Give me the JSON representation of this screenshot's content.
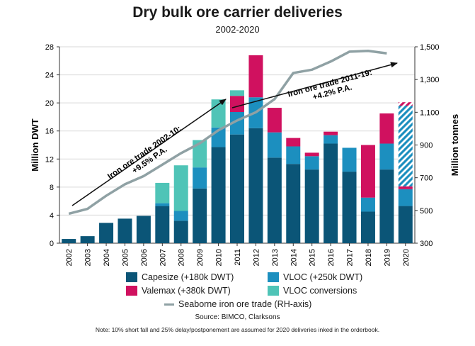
{
  "title": "Dry bulk ore carrier deliveries",
  "subtitle": "2002-2020",
  "source": "Source: BIMCO, Clarksons",
  "note": "Note: 10% short fall and 25% delay/postponement are assumed for 2020 deliveries inked in the orderbook.",
  "colors": {
    "capesize": "#0b5577",
    "vloc": "#1c8fbf",
    "valemax": "#d0115f",
    "vloc_conversions": "#4fc4b7",
    "trade_line": "#8fa1a4",
    "grid": "#d9d9d9"
  },
  "legend": {
    "capesize": "Capesize (+180k DWT)",
    "vloc": "VLOC (+250k DWT)",
    "valemax": "Valemax (+380k DWT)",
    "vloc_conversions": "VLOC conversions",
    "trade": "Seaborne iron ore trade (RH-axis)"
  },
  "annotations": {
    "trade_2002_10": [
      "Iron ore trade 2002-10:",
      "+9.5% P.A."
    ],
    "trade_2011_19": [
      "Iron ore trade 2011-19:",
      "+4.2% P.A."
    ]
  },
  "chart_data": {
    "type": "bar",
    "stacked": true,
    "categories": [
      "2002",
      "2003",
      "2004",
      "2005",
      "2006",
      "2007",
      "2008",
      "2009",
      "2010",
      "2011",
      "2012",
      "2013",
      "2014",
      "2015",
      "2016",
      "2017",
      "2018",
      "2019",
      "2020"
    ],
    "series": [
      {
        "name": "Capesize (+180k DWT)",
        "values": [
          0.6,
          1.0,
          2.9,
          3.5,
          3.9,
          5.3,
          3.2,
          7.8,
          13.7,
          15.5,
          16.4,
          12.2,
          11.3,
          10.5,
          14.2,
          10.2,
          4.5,
          10.5,
          5.3
        ]
      },
      {
        "name": "VLOC (+250k DWT)",
        "values": [
          0,
          0,
          0,
          0,
          0,
          0.4,
          1.4,
          3.0,
          2.8,
          3.2,
          4.4,
          3.6,
          2.5,
          1.9,
          1.2,
          3.4,
          2.0,
          3.7,
          2.4
        ]
      },
      {
        "name": "Valemax (+380k DWT)",
        "values": [
          0,
          0,
          0,
          0,
          0,
          0,
          0,
          0,
          0,
          2.3,
          6.0,
          3.5,
          1.2,
          0.5,
          0.5,
          0,
          7.5,
          4.3,
          0.4
        ]
      },
      {
        "name": "VLOC conversions",
        "values": [
          0,
          0,
          0,
          0,
          0,
          2.9,
          6.5,
          3.9,
          4.0,
          0.8,
          0,
          0,
          0,
          0,
          0,
          0,
          0,
          0,
          0
        ]
      }
    ],
    "hatched_2020": {
      "vloc": 11.5,
      "valemax": 0.5
    },
    "line": {
      "name": "Seaborne iron ore trade (RH-axis)",
      "axis": "right",
      "values": [
        480,
        510,
        590,
        660,
        710,
        780,
        850,
        910,
        990,
        1050,
        1100,
        1180,
        1340,
        1360,
        1410,
        1470,
        1475,
        1460,
        null
      ]
    },
    "ylabel": "Million DWT",
    "y2label": "Million tonnes",
    "ylim": [
      0,
      28
    ],
    "yticks": [
      0,
      4,
      8,
      12,
      16,
      20,
      24,
      28
    ],
    "y2lim": [
      300,
      1500
    ],
    "y2ticks": [
      300,
      500,
      700,
      900,
      1100,
      1300,
      1500
    ],
    "y2ticklabels": [
      "300",
      "500",
      "700",
      "900",
      "1,100",
      "1,300",
      "1,500"
    ],
    "grid": true
  }
}
